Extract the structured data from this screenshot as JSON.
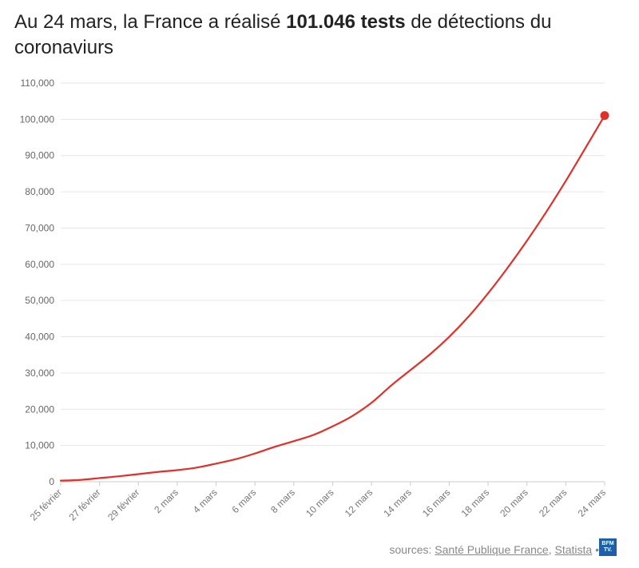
{
  "title": {
    "prefix": "Au 24 mars, la France a réalisé ",
    "bold": "101.046 tests",
    "suffix": " de détections du coronaviurs"
  },
  "footer": {
    "label": "sources: ",
    "source1": "Santé Publique France",
    "separator": ", ",
    "source2": "Statista",
    "bullet": " •",
    "logo_text": "BFM TV."
  },
  "colors": {
    "line": "#e0302a",
    "logo": "#1d5fa8"
  },
  "chart_data": {
    "type": "line",
    "title": "Au 24 mars, la France a réalisé 101.046 tests de détections du coronaviurs",
    "xlabel": "",
    "ylabel": "",
    "ylim": [
      0,
      110000
    ],
    "yticks": [
      "0",
      "10,000",
      "20,000",
      "30,000",
      "40,000",
      "50,000",
      "60,000",
      "70,000",
      "80,000",
      "90,000",
      "100,000",
      "110,000"
    ],
    "xticks": [
      "25 février",
      "27 février",
      "29 février",
      "2 mars",
      "4 mars",
      "6 mars",
      "8 mars",
      "10 mars",
      "12 mars",
      "14 mars",
      "16 mars",
      "18 mars",
      "20 mars",
      "22 mars",
      "24 mars"
    ],
    "grid": true,
    "legend": "none",
    "series": [
      {
        "x": [
          "25 février",
          "26 février",
          "27 février",
          "28 février",
          "29 février",
          "1 mars",
          "2 mars",
          "3 mars",
          "4 mars",
          "5 mars",
          "6 mars",
          "7 mars",
          "8 mars",
          "9 mars",
          "10 mars",
          "11 mars",
          "12 mars",
          "13 mars",
          "14 mars",
          "15 mars",
          "16 mars",
          "17 mars",
          "18 mars",
          "19 mars",
          "20 mars",
          "21 mars",
          "22 mars",
          "23 mars",
          "24 mars"
        ],
        "values": [
          300,
          500,
          1000,
          1500,
          2100,
          2700,
          3200,
          3900,
          5000,
          6200,
          7800,
          9600,
          11200,
          12900,
          15300,
          18100,
          21800,
          26500,
          30800,
          35100,
          40000,
          45600,
          52000,
          59000,
          66500,
          74500,
          83000,
          92000,
          101046
        ],
        "final_value_marked": true
      }
    ]
  }
}
